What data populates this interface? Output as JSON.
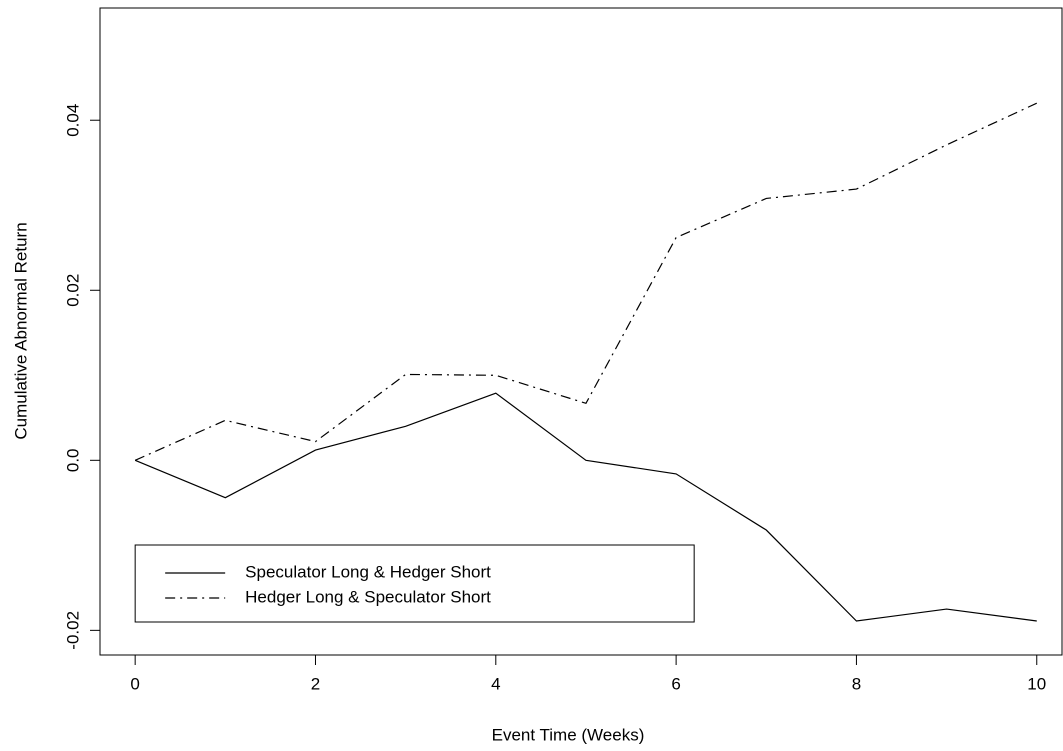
{
  "chart_data": {
    "type": "line",
    "x_label": "Event Time (Weeks)",
    "y_label": "Cumulative Abnormal Return",
    "x": [
      0,
      1,
      2,
      3,
      4,
      5,
      6,
      7,
      8,
      9,
      10
    ],
    "series": [
      {
        "name": "Speculator Long & Hedger Short",
        "color": "#000000",
        "line_style": "solid",
        "values": [
          0,
          -0.0044,
          0.0012,
          0.004,
          0.0079,
          0,
          -0.0016,
          -0.0082,
          -0.0189,
          -0.0175,
          -0.0189
        ]
      },
      {
        "name": "Hedger Long & Speculator Short",
        "color": "#000000",
        "line_style": "dashdot",
        "values": [
          0,
          0.0047,
          0.0022,
          0.0101,
          0.01,
          0.0067,
          0.0262,
          0.0308,
          0.0319,
          0.0371,
          0.042
        ]
      }
    ],
    "xlim": [
      -0.39,
      10.28
    ],
    "ylim": [
      -0.0229,
      0.0532
    ],
    "xticks": [
      0,
      2,
      4,
      6,
      8,
      10
    ],
    "yticks": [
      -0.02,
      {
        "value": 0,
        "label": "0.0"
      },
      0.02,
      0.04
    ],
    "grid": false,
    "legend_position": "bottom-left"
  }
}
